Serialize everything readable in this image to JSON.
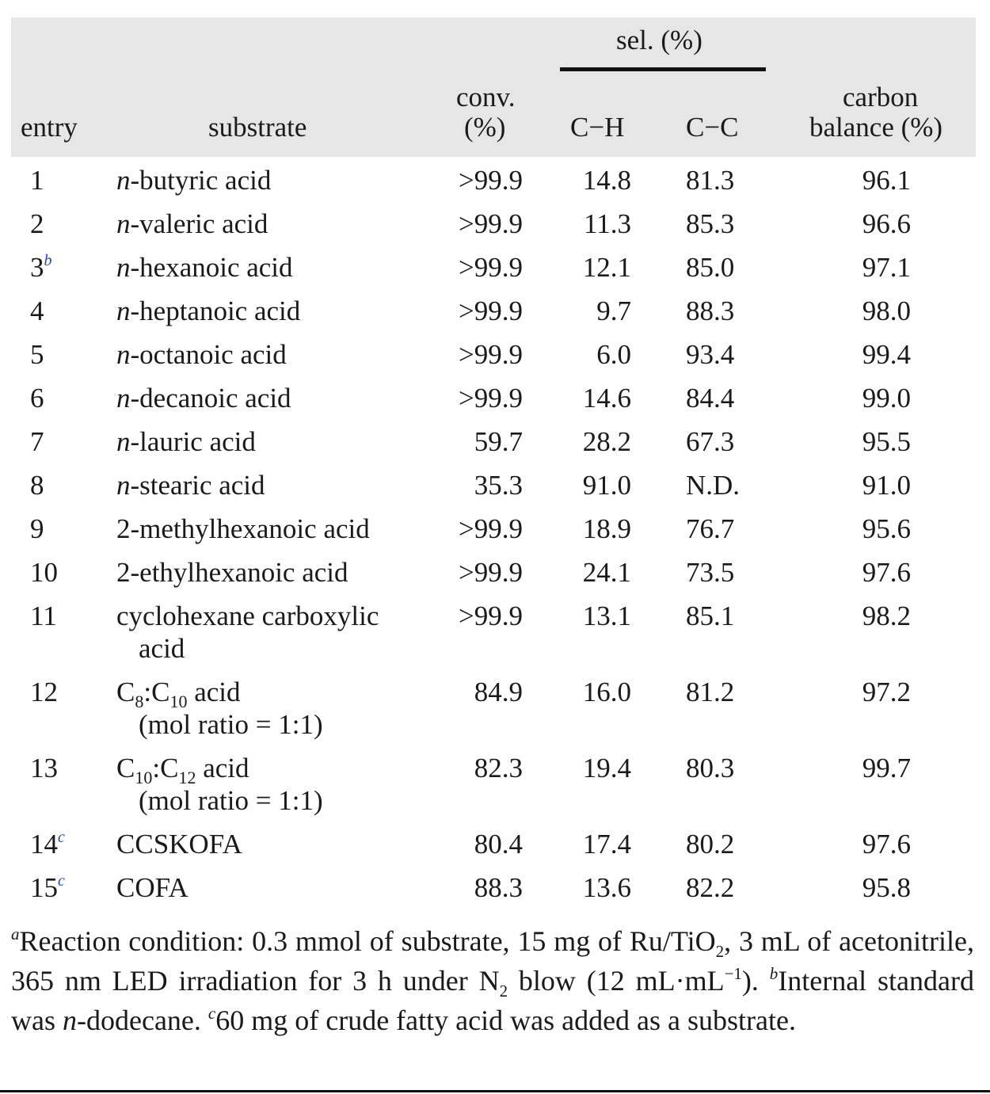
{
  "header": {
    "entry": "entry",
    "substrate": "substrate",
    "conv_line1": "conv.",
    "conv_line2": "(%)",
    "sel": "sel. (%)",
    "ch": "C−H",
    "cc": "C−C",
    "cb_line1": "carbon",
    "cb_line2": "balance (%)"
  },
  "rows": [
    {
      "entry": "1",
      "sup": "",
      "substrate": [
        {
          "t": "n",
          "s": "i"
        },
        {
          "t": "-butyric acid"
        }
      ],
      "line2": "",
      "conv": ">99.9",
      "ch": "14.8",
      "cc": "81.3",
      "cb": "96.1"
    },
    {
      "entry": "2",
      "sup": "",
      "substrate": [
        {
          "t": "n",
          "s": "i"
        },
        {
          "t": "-valeric acid"
        }
      ],
      "line2": "",
      "conv": ">99.9",
      "ch": "11.3",
      "cc": "85.3",
      "cb": "96.6"
    },
    {
      "entry": "3",
      "sup": "b",
      "substrate": [
        {
          "t": "n",
          "s": "i"
        },
        {
          "t": "-hexanoic acid"
        }
      ],
      "line2": "",
      "conv": ">99.9",
      "ch": "12.1",
      "cc": "85.0",
      "cb": "97.1"
    },
    {
      "entry": "4",
      "sup": "",
      "substrate": [
        {
          "t": "n",
          "s": "i"
        },
        {
          "t": "-heptanoic acid"
        }
      ],
      "line2": "",
      "conv": ">99.9",
      "ch": "9.7",
      "cc": "88.3",
      "cb": "98.0"
    },
    {
      "entry": "5",
      "sup": "",
      "substrate": [
        {
          "t": "n",
          "s": "i"
        },
        {
          "t": "-octanoic acid"
        }
      ],
      "line2": "",
      "conv": ">99.9",
      "ch": "6.0",
      "cc": "93.4",
      "cb": "99.4"
    },
    {
      "entry": "6",
      "sup": "",
      "substrate": [
        {
          "t": "n",
          "s": "i"
        },
        {
          "t": "-decanoic acid"
        }
      ],
      "line2": "",
      "conv": ">99.9",
      "ch": "14.6",
      "cc": "84.4",
      "cb": "99.0"
    },
    {
      "entry": "7",
      "sup": "",
      "substrate": [
        {
          "t": "n",
          "s": "i"
        },
        {
          "t": "-lauric acid"
        }
      ],
      "line2": "",
      "conv": "59.7",
      "ch": "28.2",
      "cc": "67.3",
      "cb": "95.5"
    },
    {
      "entry": "8",
      "sup": "",
      "substrate": [
        {
          "t": "n",
          "s": "i"
        },
        {
          "t": "-stearic acid"
        }
      ],
      "line2": "",
      "conv": "35.3",
      "ch": "91.0",
      "cc": "N.D.",
      "cb": "91.0"
    },
    {
      "entry": "9",
      "sup": "",
      "substrate": [
        {
          "t": "2-methylhexanoic acid"
        }
      ],
      "line2": "",
      "conv": ">99.9",
      "ch": "18.9",
      "cc": "76.7",
      "cb": "95.6"
    },
    {
      "entry": "10",
      "sup": "",
      "substrate": [
        {
          "t": "2-ethylhexanoic acid"
        }
      ],
      "line2": "",
      "conv": ">99.9",
      "ch": "24.1",
      "cc": "73.5",
      "cb": "97.6"
    },
    {
      "entry": "11",
      "sup": "",
      "substrate": [
        {
          "t": "cyclohexane carboxylic"
        }
      ],
      "line2": "acid",
      "conv": ">99.9",
      "ch": "13.1",
      "cc": "85.1",
      "cb": "98.2"
    },
    {
      "entry": "12",
      "sup": "",
      "substrate": [
        {
          "t": "C"
        },
        {
          "t": "8",
          "s": "sub"
        },
        {
          "t": ":C"
        },
        {
          "t": "10",
          "s": "sub"
        },
        {
          "t": " acid"
        }
      ],
      "line2": "(mol ratio = 1:1)",
      "conv": "84.9",
      "ch": "16.0",
      "cc": "81.2",
      "cb": "97.2"
    },
    {
      "entry": "13",
      "sup": "",
      "substrate": [
        {
          "t": "C"
        },
        {
          "t": "10",
          "s": "sub"
        },
        {
          "t": ":C"
        },
        {
          "t": "12",
          "s": "sub"
        },
        {
          "t": " acid"
        }
      ],
      "line2": "(mol ratio = 1:1)",
      "conv": "82.3",
      "ch": "19.4",
      "cc": "80.3",
      "cb": "99.7"
    },
    {
      "entry": "14",
      "sup": "c",
      "substrate": [
        {
          "t": "CCSKOFA"
        }
      ],
      "line2": "",
      "conv": "80.4",
      "ch": "17.4",
      "cc": "80.2",
      "cb": "97.6"
    },
    {
      "entry": "15",
      "sup": "c",
      "substrate": [
        {
          "t": "COFA"
        }
      ],
      "line2": "",
      "conv": "88.3",
      "ch": "13.6",
      "cc": "82.2",
      "cb": "95.8"
    }
  ],
  "footnote": {
    "a_mark": "a",
    "a_text1": "Reaction condition: 0.3 mmol of substrate, 15 mg of Ru/TiO",
    "a_sub1": "2",
    "a_text2": ", 3 mL of acetonitrile, 365 nm LED irradiation for 3 h under N",
    "a_sub2": "2",
    "a_text3": " blow (12 mL·mL",
    "a_sup": "−1",
    "a_text4": "). ",
    "b_mark": "b",
    "b_text1": "Internal standard was ",
    "b_italic": "n",
    "b_text2": "-dodecane. ",
    "c_mark": "c",
    "c_text": "60 mg of crude fatty acid was added as a substrate."
  }
}
